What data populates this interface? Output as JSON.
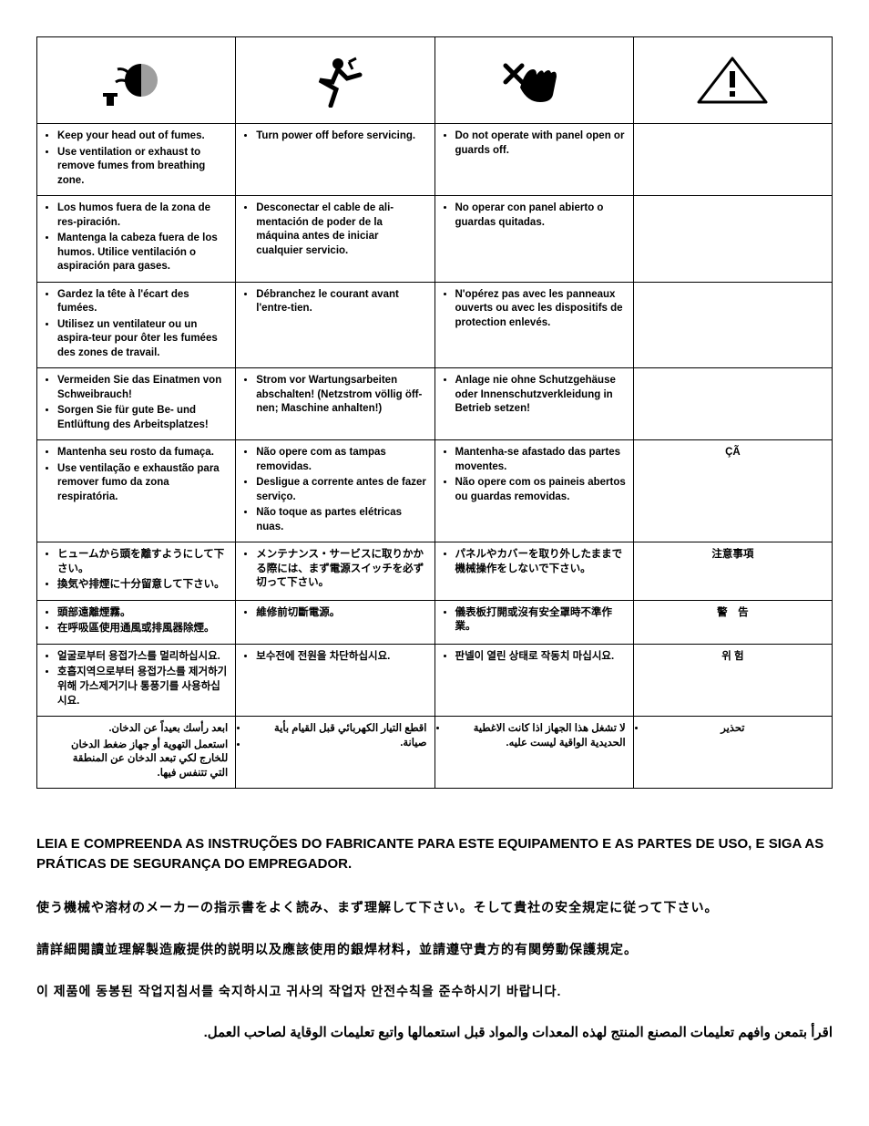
{
  "table": {
    "border_color": "#000000",
    "background": "#ffffff",
    "rows": [
      {
        "c1": [
          "Keep your head out of fumes.",
          "Use ventilation or exhaust to remove fumes from breathing zone."
        ],
        "c2": [
          "Turn power off before servicing."
        ],
        "c3": [
          "Do not operate with panel open or guards off."
        ],
        "label": ""
      },
      {
        "c1": [
          "Los humos fuera de la zona de res-piración.",
          "Mantenga la cabeza fuera de los humos. Utilice ventilación o aspiración para gases."
        ],
        "c2": [
          "Desconectar el cable de ali-mentación de poder de la máquina antes de iniciar cualquier servicio."
        ],
        "c3": [
          "No operar con panel abierto o guardas quitadas."
        ],
        "label": ""
      },
      {
        "c1": [
          "Gardez la tête à l'écart des fumées.",
          "Utilisez un ventilateur ou un aspira-teur pour ôter les fumées des zones de travail."
        ],
        "c2": [
          "Débranchez le courant avant l'entre-tien."
        ],
        "c3": [
          "N'opérez pas avec les panneaux ouverts ou avec les dispositifs de protection enlevés."
        ],
        "label": ""
      },
      {
        "c1": [
          "Vermeiden Sie das Einatmen von Schweibrauch!",
          "Sorgen Sie für gute Be- und Entlüftung des Arbeitsplatzes!"
        ],
        "c2": [
          "Strom vor Wartungsarbeiten abschalten! (Netzstrom völlig öff-nen; Maschine anhalten!)"
        ],
        "c3": [
          "Anlage nie ohne Schutzgehäuse oder Innenschutzverkleidung in Betrieb setzen!"
        ],
        "label": ""
      },
      {
        "c1": [
          "Mantenha seu rosto da fumaça.",
          "Use ventilação e exhaustão para remover fumo da zona respiratória."
        ],
        "c2": [
          "Não opere com as tampas removidas.",
          "Desligue a corrente antes de fazer serviço.",
          "Não toque as partes elétricas nuas."
        ],
        "c3": [
          "Mantenha-se afastado das partes moventes.",
          "Não opere com os paineis abertos ou guardas removidas."
        ],
        "label": "ÇÃ"
      },
      {
        "c1": [
          "ヒュームから頭を離すようにして下さい。",
          "換気や排煙に十分留意して下さい。"
        ],
        "c2": [
          "メンテナンス・サービスに取りかかる際には、まず電源スイッチを必ず切って下さい。"
        ],
        "c3": [
          "パネルやカバーを取り外したままで機械操作をしないで下さい。"
        ],
        "label": "注意事項"
      },
      {
        "c1": [
          "頭部遠離煙霧。",
          "在呼吸區使用通風或排風器除煙。"
        ],
        "c2": [
          "維修前切斷電源。"
        ],
        "c3": [
          "儀表板打開或沒有安全罩時不準作業。"
        ],
        "label": "警　告"
      },
      {
        "c1": [
          "얼굴로부터 용접가스를 멀리하십시요.",
          "호흡지역으로부터 용접가스를 제거하기 위해 가스제거기나 통풍기를 사용하십시요."
        ],
        "c2": [
          "보수전에 전원을 차단하십시요."
        ],
        "c3": [
          "판넬이 열린 상태로 작동치 마십시요."
        ],
        "label": "위 험"
      },
      {
        "c1_rtl": [
          "ابعد رأسك بعيداً عن الدخان.",
          "استعمل التهوية أو جهاز ضغط الدخان للخارج لكي تبعد الدخان عن المنطقة التي تتنفس فيها."
        ],
        "c2_rtl": [
          "اقطع التيار الكهربائي قبل القيام بأية صيانة."
        ],
        "c3_rtl": [
          "لا تشغل هذا الجهاز اذا كانت الاغطية الحديدية الواقية ليست عليه."
        ],
        "label": "تحذير"
      }
    ]
  },
  "bottom": {
    "pt": "LEIA E COMPREENDA AS INSTRUÇÕES DO FABRICANTE PARA ESTE EQUIPAMENTO E AS PARTES DE USO, E SIGA AS PRÁTICAS DE SEGURANÇA DO EMPREGADOR.",
    "ja": "使う機械や溶材のメーカーの指示書をよく読み、まず理解して下さい。そして貴社の安全規定に従って下さい。",
    "zh": "請詳細閱讀並理解製造廠提供的説明以及應該使用的銀焊材料，並請遵守貴方的有関勞動保護規定。",
    "ko": "이 제품에 동봉된 작업지침서를 숙지하시고 귀사의 작업자 안전수칙을 준수하시기 바랍니다.",
    "ar": "اقرأ بتمعن وافهم تعليمات المصنع المنتج لهذه المعدات والمواد قبل استعمالها واتبع تعليمات الوقاية لصاحب العمل."
  }
}
